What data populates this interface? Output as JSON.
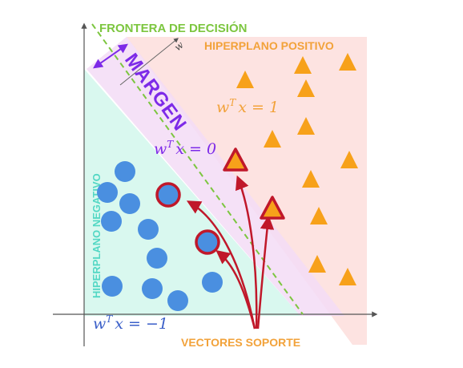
{
  "labels": {
    "decision_boundary": "FRONTERA DE DECISIÓN",
    "positive_hyperplane": "HIPERPLANO POSITIVO",
    "negative_hyperplane": "HIPERPLANO NEGATIVO",
    "margin": "MARGEN",
    "support_vectors": "VECTORES SOPORTE",
    "w_vector": "w"
  },
  "equations": {
    "positive": {
      "base": "w",
      "sup": "T",
      "rest": "x = 1"
    },
    "boundary": {
      "base": "w",
      "sup": "T",
      "rest": "x = 0"
    },
    "negative": {
      "base": "w",
      "sup": "T",
      "rest": "x = −1"
    }
  },
  "colors": {
    "positive_region": "#fde3e1",
    "negative_region": "#d9f8ef",
    "margin_band": "#f3dcf6",
    "decision_line": "#7cc63f",
    "triangle": "#f7a11a",
    "circle": "#4a8fe0",
    "support_outline": "#c0182a",
    "arrow": "#c0182a",
    "margin_arrow": "#7d2ae8",
    "eq_positive": "#f2a23a",
    "eq_boundary": "#7d2ae8",
    "eq_negative": "#3a5fc8"
  },
  "icons": {
    "triangle": "class-positive-triangle",
    "circle": "class-negative-circle"
  }
}
